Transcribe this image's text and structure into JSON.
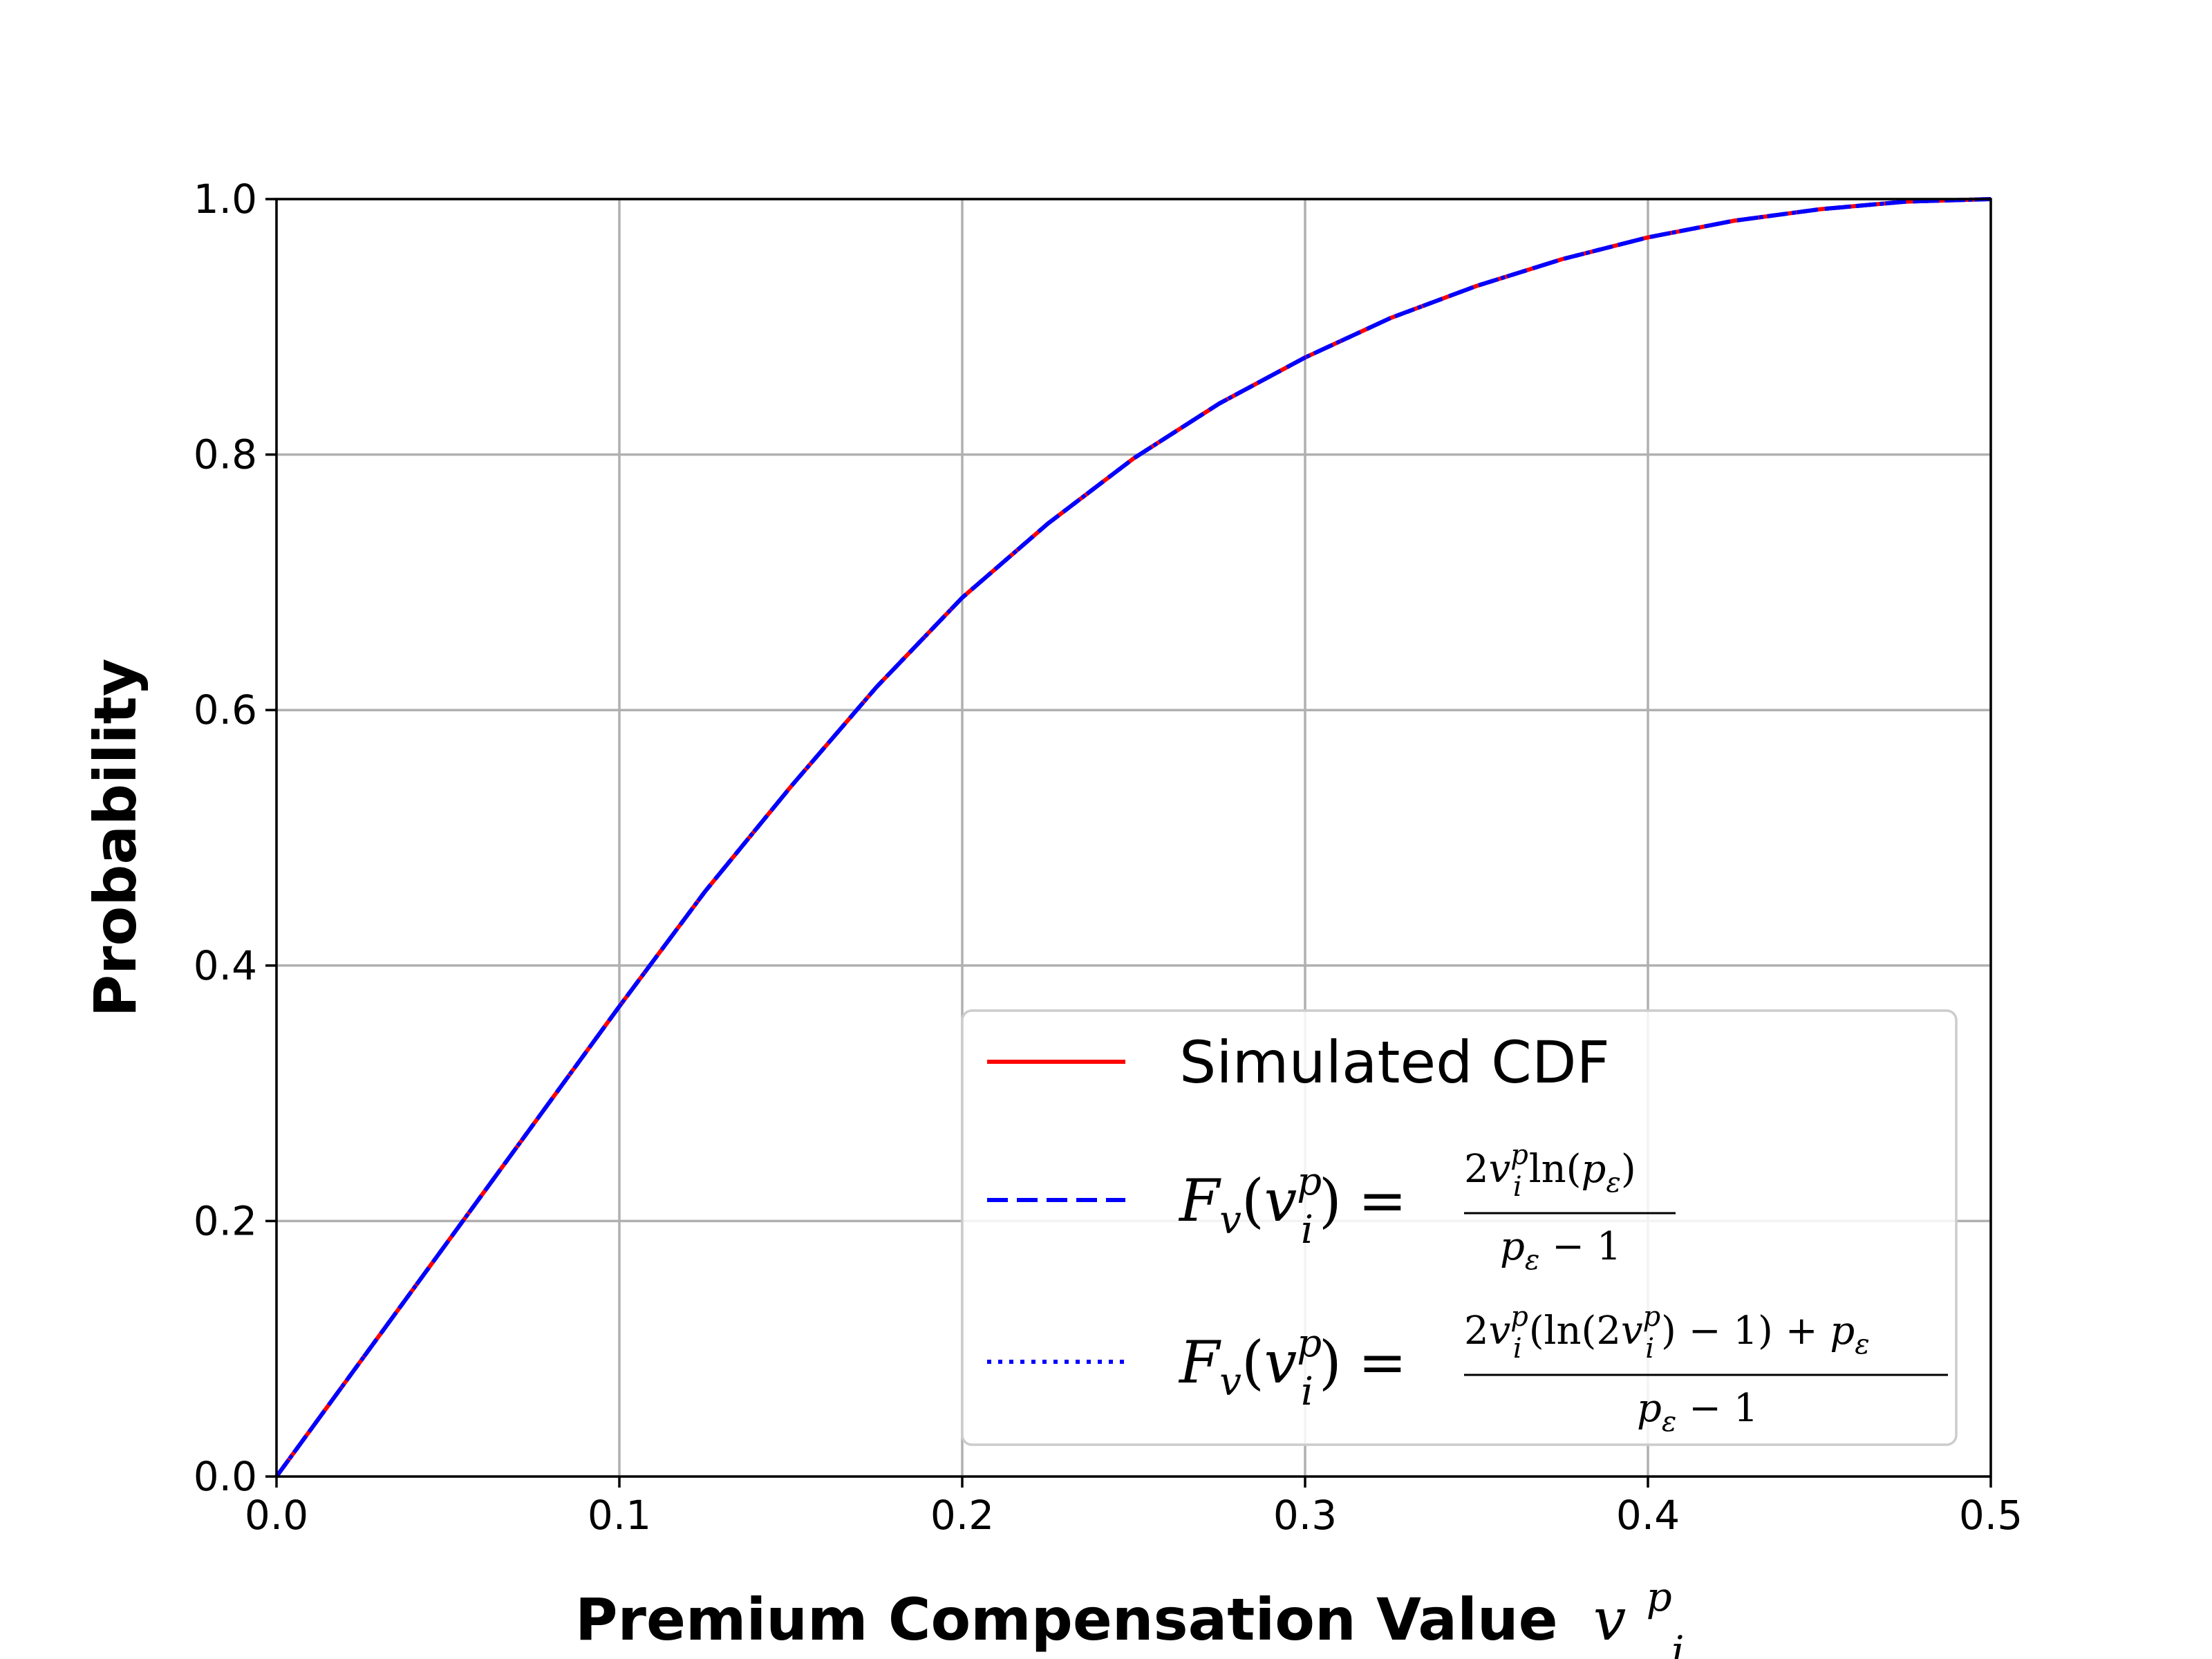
{
  "chart_data": {
    "type": "line",
    "xlabel": "Premium Compensation Value",
    "xlabel_symbol": "v",
    "xlabel_symbol_sup": "p",
    "xlabel_symbol_sub": "i",
    "ylabel": "Probability",
    "xlim": [
      0.0,
      0.5
    ],
    "ylim": [
      0.0,
      1.0
    ],
    "xticks": [
      0.0,
      0.1,
      0.2,
      0.3,
      0.4,
      0.5
    ],
    "xtick_labels": [
      "0.0",
      "0.1",
      "0.2",
      "0.3",
      "0.4",
      "0.5"
    ],
    "yticks": [
      0.0,
      0.2,
      0.4,
      0.6,
      0.8,
      1.0
    ],
    "ytick_labels": [
      "0.0",
      "0.2",
      "0.4",
      "0.6",
      "0.8",
      "1.0"
    ],
    "grid": true,
    "legend_position": "lower-right",
    "x": [
      0.0,
      0.025,
      0.05,
      0.075,
      0.1,
      0.125,
      0.15,
      0.175,
      0.2,
      0.225,
      0.25,
      0.275,
      0.3,
      0.325,
      0.35,
      0.375,
      0.4,
      0.425,
      0.45,
      0.475,
      0.5
    ],
    "series": [
      {
        "name": "Simulated CDF",
        "color": "#ff0000",
        "style": "solid",
        "values": [
          0.0,
          0.092,
          0.184,
          0.276,
          0.368,
          0.458,
          0.54,
          0.618,
          0.688,
          0.746,
          0.797,
          0.84,
          0.876,
          0.907,
          0.932,
          0.953,
          0.97,
          0.983,
          0.992,
          0.998,
          1.0
        ]
      },
      {
        "name": "Fv(vip) = 2vip ln(pε) / (pε − 1)",
        "color": "#0000ff",
        "style": "dashed",
        "values": [
          0.0,
          0.092,
          0.184,
          0.276,
          0.368,
          0.458,
          0.54,
          0.618,
          0.688,
          0.746,
          0.797,
          0.84,
          0.876,
          0.907,
          0.932,
          0.953,
          0.97,
          0.983,
          0.992,
          0.998,
          1.0
        ]
      },
      {
        "name": "Fv(vip) = (2vip(ln(2vip) − 1) + pε) / (pε − 1)",
        "color": "#0000ff",
        "style": "dotted",
        "values": [
          0.0,
          0.092,
          0.184,
          0.276,
          0.368,
          0.458,
          0.54,
          0.618,
          0.688,
          0.746,
          0.797,
          0.84,
          0.876,
          0.907,
          0.932,
          0.953,
          0.97,
          0.983,
          0.992,
          0.998,
          1.0
        ]
      }
    ]
  },
  "legend": {
    "entry1": "Simulated CDF",
    "F": "F",
    "v_sub": "v",
    "v": "v",
    "p_sup": "p",
    "i_sub": "i",
    "eq": "=",
    "lparen": "(",
    "rparen": ")",
    "num1_two": "2",
    "num1_ln": "ln(",
    "num1_peps": "p",
    "eps": "ε",
    "num1_close": ")",
    "den_minus": " − 1",
    "num2_two": "2",
    "num2_ln_open": "(ln(2",
    "num2_close_minus": ") − 1) + ",
    "num2_peps": "p"
  }
}
